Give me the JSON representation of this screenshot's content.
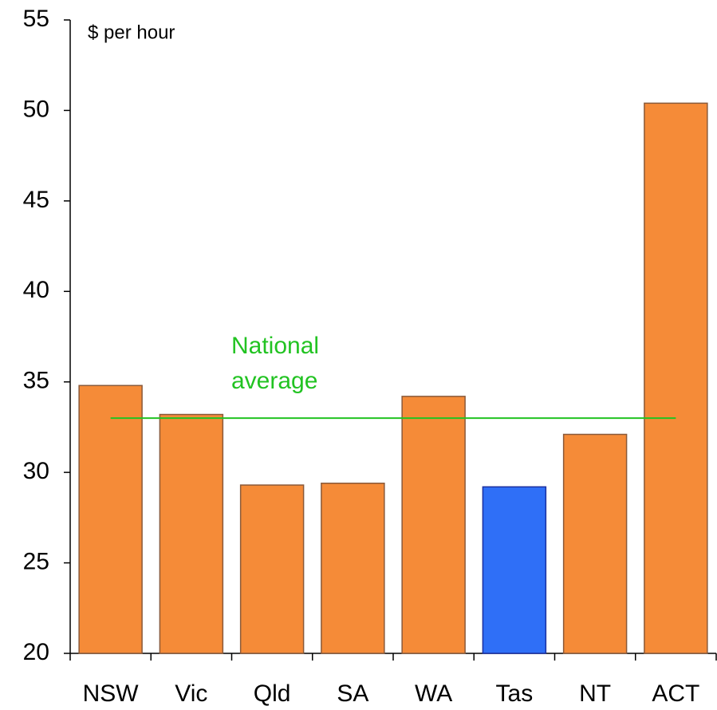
{
  "chart_data": {
    "type": "bar",
    "title": "$ per hour",
    "categories": [
      "NSW",
      "Vic",
      "Qld",
      "SA",
      "WA",
      "Tas",
      "NT",
      "ACT"
    ],
    "values": [
      34.8,
      33.2,
      29.3,
      29.4,
      34.2,
      29.2,
      32.1,
      50.4
    ],
    "colors": [
      "#f58b38",
      "#f58b38",
      "#f58b38",
      "#f58b38",
      "#f58b38",
      "#2f6ff7",
      "#f58b38",
      "#f58b38"
    ],
    "ylim": [
      20,
      55
    ],
    "yticks": [
      20,
      25,
      30,
      35,
      40,
      45,
      50,
      55
    ],
    "grid": false,
    "reference_line": {
      "value": 33.0,
      "color": "#22c322",
      "label_lines": [
        "National",
        "average"
      ]
    }
  }
}
